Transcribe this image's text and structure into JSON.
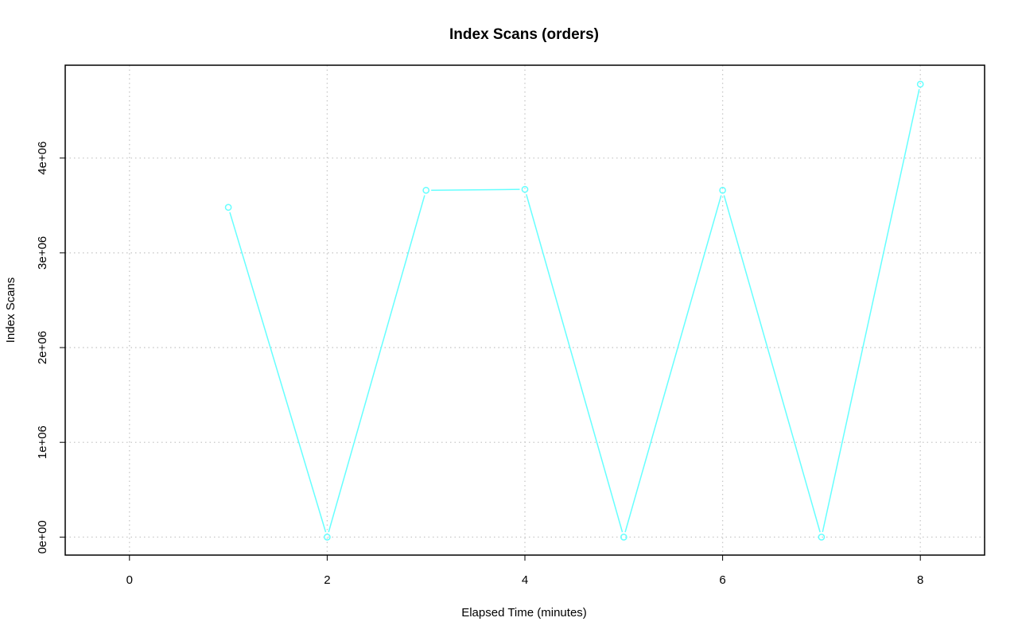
{
  "chart_data": {
    "type": "line",
    "title": "Index Scans (orders)",
    "xlabel": "Elapsed Time (minutes)",
    "ylabel": "Index Scans",
    "xlim": [
      -0.65,
      8.65
    ],
    "ylim": [
      -190000,
      4980000
    ],
    "x_ticks": [
      0,
      2,
      4,
      6,
      8
    ],
    "x_tick_labels": [
      "0",
      "2",
      "4",
      "6",
      "8"
    ],
    "y_ticks": [
      0,
      1000000,
      2000000,
      3000000,
      4000000
    ],
    "y_tick_labels": [
      "0e+00",
      "1e+06",
      "2e+06",
      "3e+06",
      "4e+06"
    ],
    "grid": true,
    "series": [
      {
        "color": "#66ffff",
        "marker": "open-circle",
        "x": [
          1,
          2,
          3,
          4,
          5,
          6,
          7,
          8
        ],
        "y": [
          3480000,
          0,
          3660000,
          3670000,
          0,
          3660000,
          0,
          4780000
        ]
      }
    ]
  }
}
